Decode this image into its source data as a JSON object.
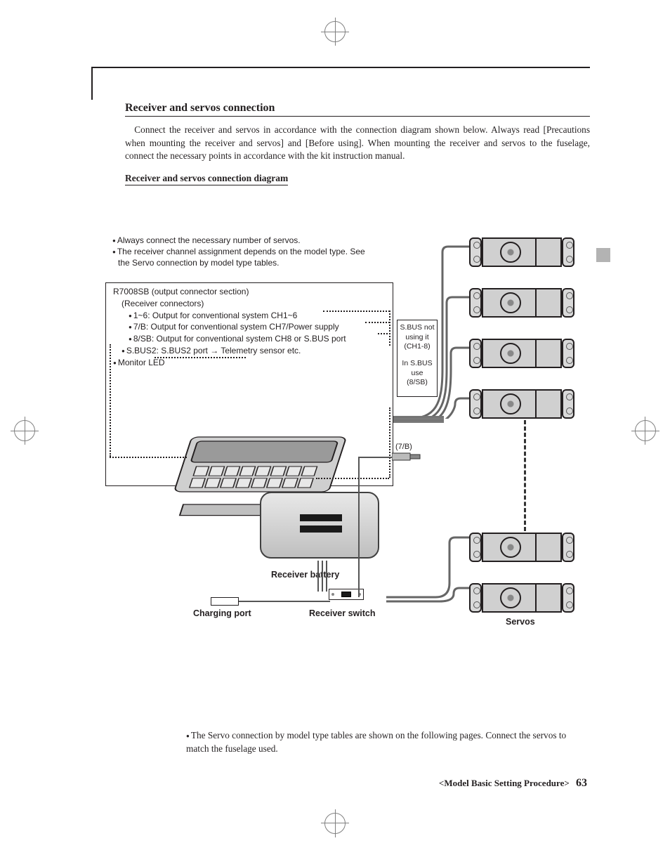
{
  "crop_color": "#808080",
  "section": {
    "title": "Receiver and servos connection",
    "body": "Connect the receiver and servos in accordance with the connection diagram shown below. Always read [Precautions when mounting the receiver and servos] and [Before using]. When mounting the receiver and servos to the fuselage, connect the necessary points in accordance with the kit instruction manual.",
    "sub_title": "Receiver and servos connection diagram"
  },
  "intro_bullets": [
    "Always connect the necessary number of servos.",
    "The receiver channel assignment depends on the model type. See the Servo connection by model type tables."
  ],
  "rx_lines": {
    "title": "R7008SB (output connector section)",
    "sub": "(Receiver connectors)",
    "l1": "1~6: Output for conventional system CH1~6",
    "l2": "7/B: Output for conventional system CH7/Power supply",
    "l3": "8/SB: Output for conventional system CH8 or S.BUS port",
    "l4": "S.BUS2: S.BUS2 port → Telemetry sensor etc.",
    "l5": "Monitor LED"
  },
  "info_box": {
    "a1": "S.BUS not",
    "a2": "using it",
    "a3": "(CH1-8)",
    "b1": "In S.BUS",
    "b2": "use",
    "b3": "(8/SB)"
  },
  "port_7b": "(7/B)",
  "battery_label": "Receiver battery",
  "switch_label": "Receiver switch",
  "charge_label": "Charging port",
  "servos_label": "Servos",
  "footer_note_1": "The Servo connection by model type tables are shown on the following pages. Connect the servos to match the fuselage used.",
  "footer": {
    "text": "<Model Basic Setting Procedure>",
    "page": "63"
  },
  "servo_positions": [
    8,
    80,
    152,
    224,
    428,
    500
  ],
  "colors": {
    "text": "#231f20",
    "tab": "#b3b3b3",
    "receiver_body": "#d0d0d0"
  }
}
